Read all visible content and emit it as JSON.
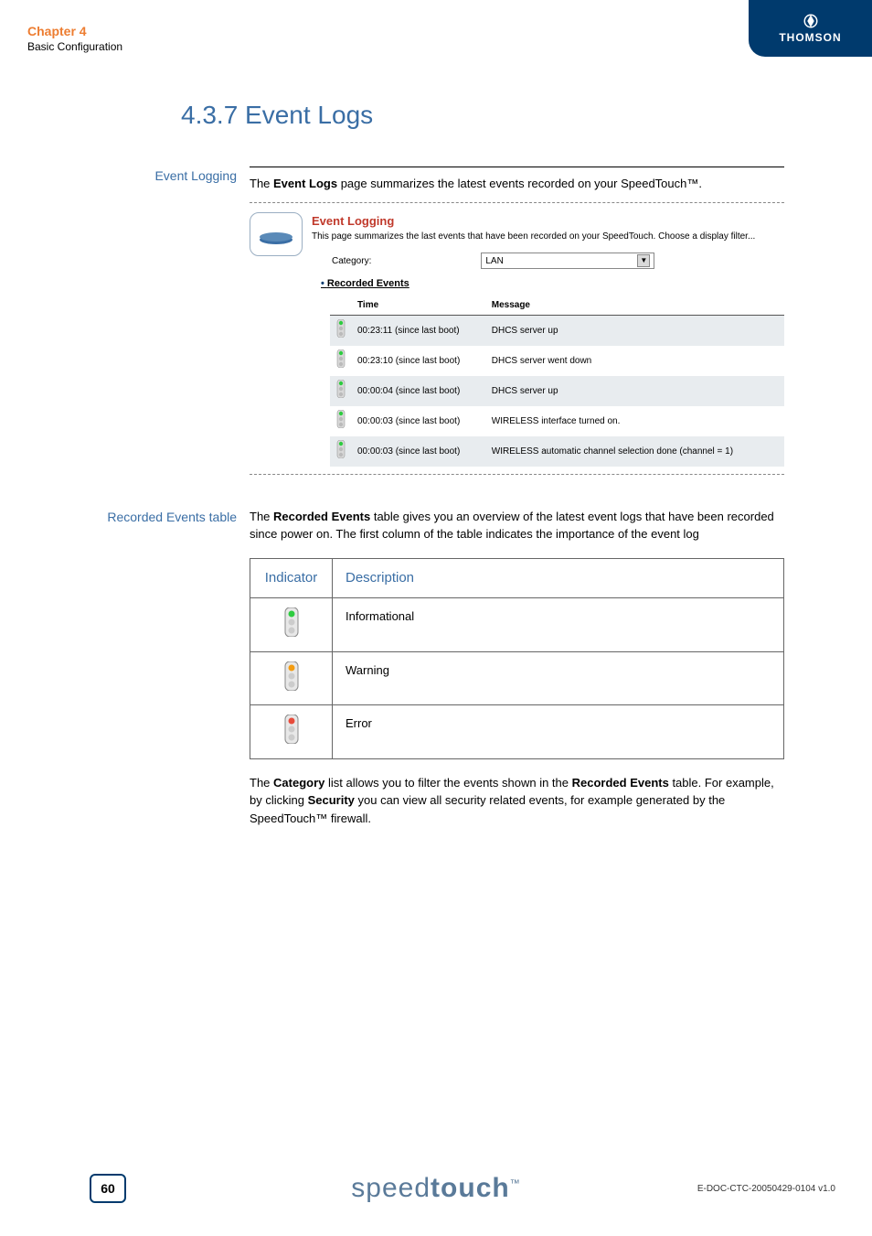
{
  "header": {
    "chapter": "Chapter 4",
    "subtitle": "Basic Configuration",
    "brand": "THOMSON"
  },
  "section": {
    "number_title": "4.3.7  Event Logs"
  },
  "event_logging": {
    "side_label": "Event Logging",
    "intro_prefix": "The ",
    "intro_bold": "Event Logs",
    "intro_suffix": " page summarizes the latest events recorded on your SpeedTouch™.",
    "ui_title": "Event Logging",
    "ui_desc": "This page summarizes the last events that have been recorded on your SpeedTouch. Choose a display filter...",
    "category_label": "Category:",
    "category_value": "LAN",
    "recorded_heading": "Recorded Events",
    "table_headers": {
      "time": "Time",
      "message": "Message"
    },
    "rows": [
      {
        "level": "info",
        "time": "00:23:11 (since last boot)",
        "msg": "DHCS server up"
      },
      {
        "level": "info",
        "time": "00:23:10 (since last boot)",
        "msg": "DHCS server went down"
      },
      {
        "level": "info",
        "time": "00:00:04 (since last boot)",
        "msg": "DHCS server up"
      },
      {
        "level": "info",
        "time": "00:00:03 (since last boot)",
        "msg": "WIRELESS interface turned on."
      },
      {
        "level": "info",
        "time": "00:00:03 (since last boot)",
        "msg": "WIRELESS automatic channel selection done (channel = 1)"
      }
    ]
  },
  "recorded_events": {
    "side_label": "Recorded Events table",
    "para_prefix": "The ",
    "para_bold": "Recorded Events",
    "para_suffix": " table gives you an overview of the latest event logs that have been recorded since power on. The first column of the table indicates the importance of the event log",
    "ind_headers": {
      "indicator": "Indicator",
      "description": "Description"
    },
    "ind_rows": [
      {
        "level": "info",
        "desc": "Informational"
      },
      {
        "level": "warn",
        "desc": "Warning"
      },
      {
        "level": "error",
        "desc": "Error"
      }
    ],
    "cat_p1a": "The ",
    "cat_p1b": "Category",
    "cat_p1c": " list allows you to filter the events shown in the ",
    "cat_p1d": "Recorded Events",
    "cat_p1e": " table. For example, by clicking ",
    "cat_p1f": "Security",
    "cat_p1g": " you can view all security related events, for example generated by the SpeedTouch™ firewall."
  },
  "footer": {
    "page": "60",
    "logo_a": "speed",
    "logo_b": "touch",
    "doc_id": "E-DOC-CTC-20050429-0104 v1.0"
  },
  "colors": {
    "accent_orange": "#ed7d31",
    "accent_blue": "#3a6ea5",
    "brand_navy": "#003a6d",
    "ui_title_red": "#c0392b",
    "row_alt": "#e8ecef",
    "info": "#2ecc40",
    "warn": "#f39c12",
    "error": "#e74c3c"
  }
}
